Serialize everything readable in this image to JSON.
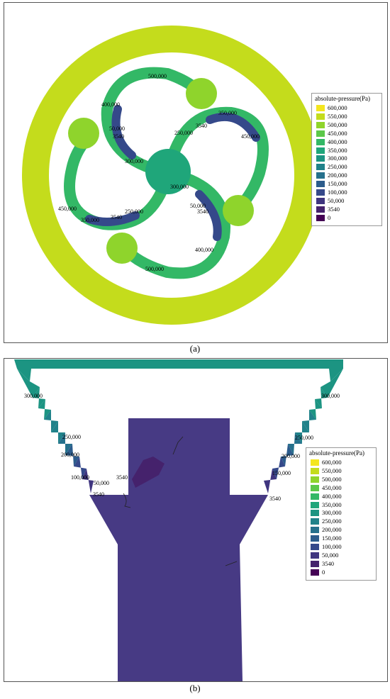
{
  "captions": {
    "a": "(a)",
    "b": "(b)"
  },
  "legend": {
    "title": "absolute-pressure(Pa)",
    "entries": [
      {
        "label": "600,000",
        "color": "#f4e61e"
      },
      {
        "label": "550,000",
        "color": "#c4dc1c"
      },
      {
        "label": "500,000",
        "color": "#8fd42c"
      },
      {
        "label": "450,000",
        "color": "#5cc84a"
      },
      {
        "label": "400,000",
        "color": "#33b866"
      },
      {
        "label": "350,000",
        "color": "#1fa67a"
      },
      {
        "label": "300,000",
        "color": "#1c9482"
      },
      {
        "label": "250,000",
        "color": "#20828a"
      },
      {
        "label": "200,000",
        "color": "#25708c"
      },
      {
        "label": "150,000",
        "color": "#2c5c8c"
      },
      {
        "label": "100,000",
        "color": "#35498a"
      },
      {
        "label": "50,000",
        "color": "#3f357f"
      },
      {
        "label": "3540",
        "color": "#45226c"
      },
      {
        "label": "0",
        "color": "#440154"
      }
    ]
  },
  "panel_a_labels": [
    "500,000",
    "400,000",
    "50,000",
    "3540",
    "350,000",
    "3540",
    "250,000",
    "450,000",
    "300,000",
    "300,000",
    "50,000",
    "3540",
    "450,000",
    "350,000",
    "3540",
    "250,000",
    "400,000",
    "500,000"
  ],
  "panel_b_labels": [
    "300,000",
    "250,000",
    "200,000",
    "100,000",
    "50,000",
    "3540",
    "3540",
    "300,000",
    "250,000",
    "200,000",
    "150,000",
    "3540"
  ]
}
